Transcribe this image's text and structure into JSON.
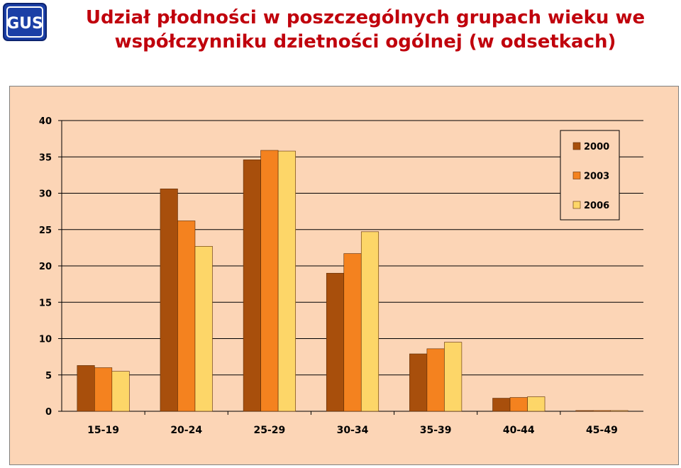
{
  "header": {
    "title_line1": "Udział płodności w poszczególnych grupach wieku we",
    "title_line2": "współczynniku dzietności ogólnej (w odsetkach)",
    "logo_text": "GUS"
  },
  "colors": {
    "title": "#c0000c",
    "plot_background": "#fcd5b6",
    "series_2000": "#a84f0c",
    "series_2003": "#f4821f",
    "series_2006": "#fdd668"
  },
  "chart_data": {
    "type": "bar",
    "title": "",
    "xlabel": "",
    "ylabel": "",
    "categories": [
      "15-19",
      "20-24",
      "25-29",
      "30-34",
      "35-39",
      "40-44",
      "45-49"
    ],
    "series": [
      {
        "name": "2000",
        "values": [
          6.3,
          30.6,
          34.6,
          19.0,
          7.9,
          1.8,
          0.1
        ]
      },
      {
        "name": "2003",
        "values": [
          6.0,
          26.2,
          35.9,
          21.7,
          8.6,
          1.9,
          0.1
        ]
      },
      {
        "name": "2006",
        "values": [
          5.5,
          22.7,
          35.8,
          24.7,
          9.5,
          2.0,
          0.1
        ]
      }
    ],
    "ylim": [
      0,
      40
    ],
    "yticks": [
      0,
      5,
      10,
      15,
      20,
      25,
      30,
      35,
      40
    ],
    "grid": true,
    "legend_position": "top-right"
  }
}
